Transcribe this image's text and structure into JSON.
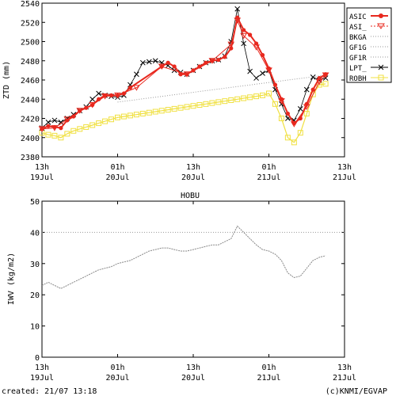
{
  "footer": {
    "created": "created: 21/07 13:18",
    "credit": "(c)KNMI/EGVAP"
  },
  "colors": {
    "asic": "#e8281e",
    "lpt": "#000000",
    "robh": "#f0e040",
    "bkga": "#999999",
    "iwv": "#888888",
    "axis": "#000000"
  },
  "chart_data": [
    {
      "type": "line",
      "title": "",
      "xlabel": "",
      "ylabel": "ZTD (mm)",
      "x_unit": "hours since 19 Jul 12:00 UTC",
      "xlim": [
        1,
        49
      ],
      "ylim": [
        2380,
        2540
      ],
      "yticks": [
        2380,
        2400,
        2420,
        2440,
        2460,
        2480,
        2500,
        2520,
        2540
      ],
      "xticks": [
        {
          "x": 1,
          "top": "13h",
          "bottom": "19Jul"
        },
        {
          "x": 13,
          "top": "01h",
          "bottom": "20Jul"
        },
        {
          "x": 25,
          "top": "13h",
          "bottom": "20Jul"
        },
        {
          "x": 37,
          "top": "01h",
          "bottom": "21Jul"
        },
        {
          "x": 49,
          "top": "13h",
          "bottom": "21Jul"
        }
      ],
      "legend_position": "right",
      "legend": [
        "ASIC",
        "ASI_",
        "BKGA",
        "GF1G",
        "GF1R",
        "LPT_",
        "ROBH"
      ],
      "series": [
        {
          "name": "ASIC",
          "marker": "circle",
          "x": [
            1,
            2,
            3,
            4,
            5,
            6,
            7,
            8,
            9,
            10,
            11,
            12,
            13,
            14,
            15,
            20,
            21,
            22,
            23,
            24,
            25,
            26,
            27,
            28,
            29,
            30,
            31,
            32,
            33,
            34,
            35,
            36,
            37,
            38,
            39,
            40,
            41,
            42,
            43,
            44,
            45,
            46
          ],
          "y": [
            2409,
            2412,
            2411,
            2410,
            2418,
            2422,
            2428,
            2431,
            2434,
            2440,
            2444,
            2444,
            2444,
            2446,
            2452,
            2474,
            2478,
            2474,
            2466,
            2466,
            2470,
            2474,
            2478,
            2480,
            2481,
            2484,
            2493,
            2525,
            2512,
            2507,
            2498,
            2486,
            2472,
            2455,
            2440,
            2425,
            2415,
            2420,
            2435,
            2450,
            2462,
            2466
          ]
        },
        {
          "name": "ASI_",
          "marker": "triangle-down",
          "x": [
            1,
            3,
            5,
            7,
            9,
            11,
            13,
            16,
            20,
            24,
            28,
            31,
            32,
            33,
            35,
            37,
            39,
            41,
            43,
            45,
            46
          ],
          "y": [
            2409,
            2410,
            2419,
            2428,
            2434,
            2443,
            2444,
            2452,
            2474,
            2466,
            2480,
            2497,
            2522,
            2506,
            2494,
            2470,
            2438,
            2414,
            2432,
            2458,
            2465
          ]
        },
        {
          "name": "BKGA",
          "marker": "none",
          "x": [
            13,
            46
          ],
          "y": [
            2437,
            2465
          ]
        },
        {
          "name": "LPT_",
          "marker": "x",
          "x": [
            1,
            2,
            3,
            4,
            5,
            6,
            7,
            8,
            9,
            10,
            11,
            12,
            13,
            14,
            15,
            16,
            17,
            18,
            19,
            20,
            21,
            22,
            23,
            24,
            25,
            26,
            27,
            28,
            29,
            30,
            31,
            32,
            33,
            34,
            35,
            36,
            37,
            38,
            39,
            40,
            41,
            42,
            43,
            44,
            45,
            46
          ],
          "y": [
            2410,
            2416,
            2418,
            2416,
            2420,
            2424,
            2428,
            2432,
            2440,
            2446,
            2444,
            2443,
            2442,
            2444,
            2455,
            2466,
            2478,
            2479,
            2480,
            2478,
            2475,
            2470,
            2468,
            2466,
            2470,
            2474,
            2478,
            2480,
            2481,
            2485,
            2500,
            2534,
            2498,
            2469,
            2462,
            2467,
            2470,
            2450,
            2435,
            2420,
            2418,
            2430,
            2450,
            2463,
            2460,
            2462
          ]
        },
        {
          "name": "ROBH",
          "marker": "square",
          "x": [
            1,
            2,
            3,
            4,
            5,
            6,
            7,
            8,
            9,
            10,
            11,
            12,
            13,
            14,
            15,
            16,
            17,
            18,
            19,
            20,
            21,
            22,
            23,
            24,
            25,
            26,
            27,
            28,
            29,
            30,
            31,
            32,
            33,
            34,
            35,
            36,
            37,
            38,
            39,
            40,
            41,
            42,
            43,
            44,
            45,
            46
          ],
          "y": [
            2405,
            2403,
            2402,
            2400,
            2404,
            2407,
            2409,
            2411,
            2413,
            2415,
            2417,
            2419,
            2421,
            2422,
            2423,
            2424,
            2425,
            2426,
            2427,
            2428,
            2429,
            2430,
            2431,
            2432,
            2433,
            2434,
            2435,
            2436,
            2437,
            2438,
            2439,
            2440,
            2441,
            2442,
            2443,
            2444,
            2446,
            2435,
            2420,
            2400,
            2395,
            2405,
            2425,
            2445,
            2455,
            2456
          ]
        }
      ]
    },
    {
      "type": "line",
      "title": "HOBU",
      "xlabel": "",
      "ylabel": "IWV (kg/m2)",
      "xlim": [
        1,
        49
      ],
      "ylim": [
        0,
        50
      ],
      "yticks": [
        0,
        10,
        20,
        30,
        40,
        50
      ],
      "xticks": [
        {
          "x": 1,
          "top": "13h",
          "bottom": "19Jul"
        },
        {
          "x": 13,
          "top": "01h",
          "bottom": "20Jul"
        },
        {
          "x": 25,
          "top": "13h",
          "bottom": "20Jul"
        },
        {
          "x": 37,
          "top": "01h",
          "bottom": "21Jul"
        },
        {
          "x": 49,
          "top": "13h",
          "bottom": "21Jul"
        }
      ],
      "reference_line": 40,
      "series": [
        {
          "name": "",
          "x": [
            1,
            2,
            3,
            4,
            5,
            6,
            7,
            8,
            9,
            10,
            11,
            12,
            13,
            14,
            15,
            16,
            17,
            18,
            19,
            20,
            21,
            22,
            23,
            24,
            25,
            26,
            27,
            28,
            29,
            30,
            31,
            32,
            33,
            34,
            35,
            36,
            37,
            38,
            39,
            40,
            41,
            42,
            43,
            44,
            45,
            46
          ],
          "y": [
            23,
            24,
            23,
            22,
            23,
            24,
            25,
            26,
            27,
            28,
            28.5,
            29,
            30,
            30.5,
            31,
            32,
            33,
            34,
            34.5,
            35,
            35,
            34.5,
            34,
            34,
            34.5,
            35,
            35.5,
            36,
            36,
            37,
            38,
            42,
            40,
            38,
            36,
            34.5,
            34,
            33,
            31,
            27,
            25.5,
            26,
            28.5,
            31,
            32,
            32.5
          ]
        }
      ]
    }
  ]
}
